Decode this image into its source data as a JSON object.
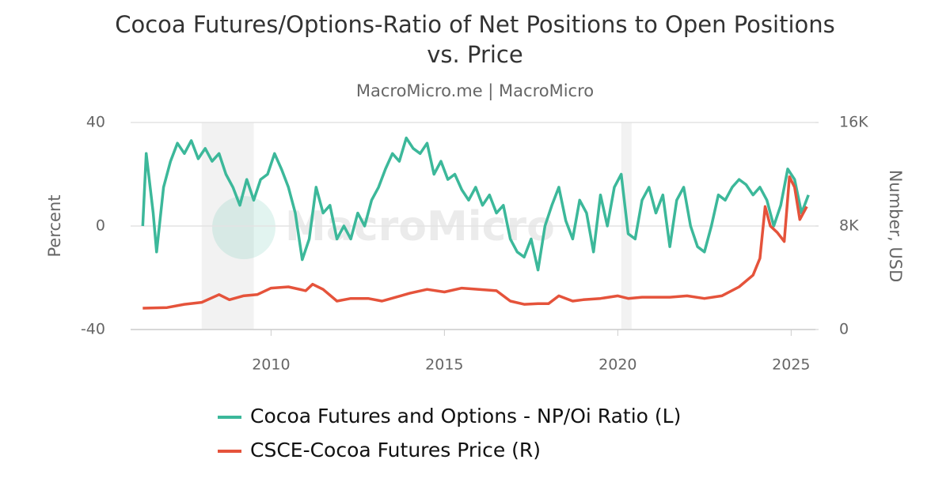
{
  "chart_data": {
    "type": "line",
    "title": "Cocoa Futures/Options-Ratio of Net Positions to Open Positions vs. Price",
    "subtitle": "MacroMicro.me | MacroMicro",
    "watermark": "MacroMicro",
    "ylabel": "Percent",
    "y2label": "Number, USD",
    "xlim": [
      2005.95,
      2025.7
    ],
    "xticks": [
      2010,
      2015,
      2020,
      2025
    ],
    "ylim": [
      -40,
      40
    ],
    "yticks": [
      -40,
      0,
      40
    ],
    "y2lim": [
      0,
      16000
    ],
    "y2ticks": [
      0,
      {
        "value": 8000,
        "label": "8K"
      },
      {
        "value": 16000,
        "label": "16K"
      }
    ],
    "grid": true,
    "shaded_ranges": [
      [
        2008.0,
        2009.5
      ],
      [
        2020.1,
        2020.4
      ]
    ],
    "legend": "bottom",
    "series": [
      {
        "name": "Cocoa Futures and Options - NP/Oi Ratio (L)",
        "color": "#3cb89a",
        "axis": "y",
        "x": [
          2006.3,
          2006.4,
          2006.6,
          2006.7,
          2006.9,
          2007.1,
          2007.3,
          2007.5,
          2007.7,
          2007.9,
          2008.1,
          2008.3,
          2008.5,
          2008.7,
          2008.9,
          2009.1,
          2009.3,
          2009.5,
          2009.7,
          2009.9,
          2010.1,
          2010.3,
          2010.5,
          2010.7,
          2010.9,
          2011.1,
          2011.3,
          2011.5,
          2011.7,
          2011.9,
          2012.1,
          2012.3,
          2012.5,
          2012.7,
          2012.9,
          2013.1,
          2013.3,
          2013.5,
          2013.7,
          2013.9,
          2014.1,
          2014.3,
          2014.5,
          2014.7,
          2014.9,
          2015.1,
          2015.3,
          2015.5,
          2015.7,
          2015.9,
          2016.1,
          2016.3,
          2016.5,
          2016.7,
          2016.9,
          2017.1,
          2017.3,
          2017.5,
          2017.7,
          2017.9,
          2018.1,
          2018.3,
          2018.5,
          2018.7,
          2018.9,
          2019.1,
          2019.3,
          2019.5,
          2019.7,
          2019.9,
          2020.1,
          2020.3,
          2020.5,
          2020.7,
          2020.9,
          2021.1,
          2021.3,
          2021.5,
          2021.7,
          2021.9,
          2022.1,
          2022.3,
          2022.5,
          2022.7,
          2022.9,
          2023.1,
          2023.3,
          2023.5,
          2023.7,
          2023.9,
          2024.1,
          2024.3,
          2024.5,
          2024.7,
          2024.9,
          2025.1,
          2025.3,
          2025.5
        ],
        "values": [
          0,
          28,
          5,
          -10,
          15,
          25,
          32,
          28,
          33,
          26,
          30,
          25,
          28,
          20,
          15,
          8,
          18,
          10,
          18,
          20,
          28,
          22,
          15,
          5,
          -13,
          -5,
          15,
          5,
          8,
          -5,
          0,
          -5,
          5,
          0,
          10,
          15,
          22,
          28,
          25,
          34,
          30,
          28,
          32,
          20,
          25,
          18,
          20,
          14,
          10,
          15,
          8,
          12,
          5,
          8,
          -5,
          -10,
          -12,
          -5,
          -17,
          0,
          8,
          15,
          2,
          -5,
          10,
          5,
          -10,
          12,
          0,
          15,
          20,
          -3,
          -5,
          10,
          15,
          5,
          12,
          -8,
          10,
          15,
          0,
          -8,
          -10,
          0,
          12,
          10,
          15,
          18,
          16,
          12,
          15,
          10,
          0,
          8,
          22,
          18,
          5,
          12
        ]
      },
      {
        "name": "CSCE-Cocoa Futures Price (R)",
        "color": "#e5533b",
        "axis": "y2",
        "x": [
          2006.3,
          2007,
          2007.5,
          2008,
          2008.5,
          2008.8,
          2009.2,
          2009.6,
          2010,
          2010.5,
          2011,
          2011.2,
          2011.5,
          2011.9,
          2012.3,
          2012.8,
          2013.2,
          2013.6,
          2014,
          2014.5,
          2015,
          2015.5,
          2016,
          2016.5,
          2016.9,
          2017.3,
          2017.7,
          2018,
          2018.3,
          2018.7,
          2019,
          2019.5,
          2020,
          2020.3,
          2020.7,
          2021,
          2021.5,
          2022,
          2022.5,
          2023,
          2023.5,
          2023.9,
          2024.1,
          2024.25,
          2024.4,
          2024.6,
          2024.8,
          2024.95,
          2025.1,
          2025.25,
          2025.45
        ],
        "values": [
          1650,
          1700,
          1950,
          2100,
          2700,
          2300,
          2600,
          2700,
          3200,
          3300,
          3000,
          3500,
          3100,
          2200,
          2400,
          2400,
          2200,
          2500,
          2800,
          3100,
          2900,
          3200,
          3100,
          3000,
          2200,
          1950,
          2000,
          2000,
          2600,
          2200,
          2300,
          2400,
          2600,
          2400,
          2500,
          2500,
          2500,
          2600,
          2400,
          2600,
          3300,
          4200,
          5500,
          9500,
          8000,
          7500,
          6800,
          11800,
          11000,
          8500,
          9500
        ]
      }
    ]
  }
}
